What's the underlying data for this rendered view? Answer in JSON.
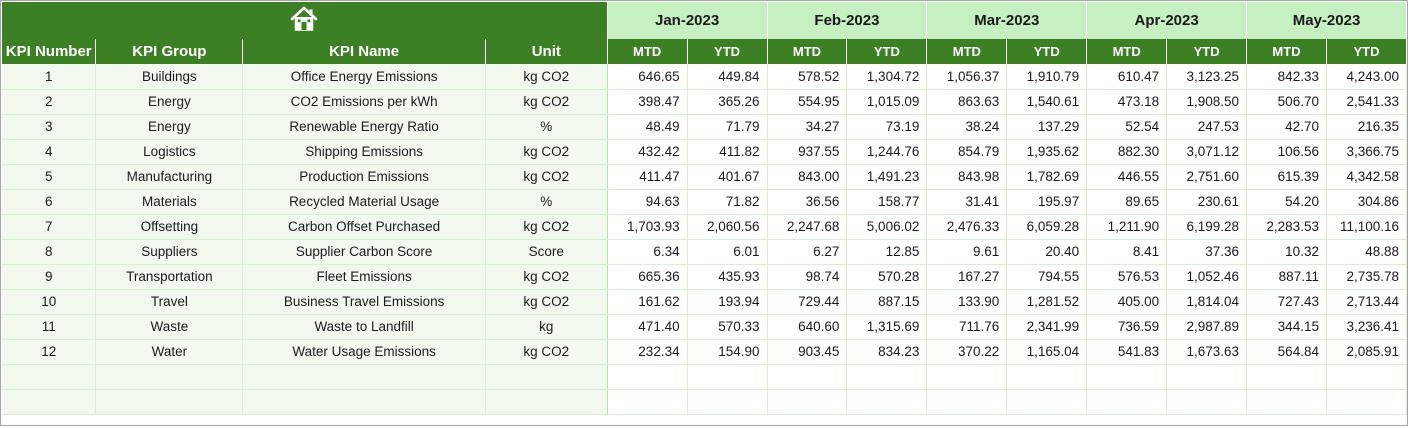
{
  "header": {
    "months": [
      "Jan-2023",
      "Feb-2023",
      "Mar-2023",
      "Apr-2023",
      "May-2023"
    ],
    "columns": {
      "kpi_number": "KPI Number",
      "kpi_group": "KPI Group",
      "kpi_name": "KPI Name",
      "unit": "Unit",
      "mtd": "MTD",
      "ytd": "YTD"
    },
    "home_icon": "home-icon"
  },
  "rows": [
    {
      "num": "1",
      "group": "Buildings",
      "name": "Office Energy Emissions",
      "unit": "kg CO2",
      "values": [
        "646.65",
        "449.84",
        "578.52",
        "1,304.72",
        "1,056.37",
        "1,910.79",
        "610.47",
        "3,123.25",
        "842.33",
        "4,243.00"
      ]
    },
    {
      "num": "2",
      "group": "Energy",
      "name": "CO2 Emissions per kWh",
      "unit": "kg CO2",
      "values": [
        "398.47",
        "365.26",
        "554.95",
        "1,015.09",
        "863.63",
        "1,540.61",
        "473.18",
        "1,908.50",
        "506.70",
        "2,541.33"
      ]
    },
    {
      "num": "3",
      "group": "Energy",
      "name": "Renewable Energy Ratio",
      "unit": "%",
      "values": [
        "48.49",
        "71.79",
        "34.27",
        "73.19",
        "38.24",
        "137.29",
        "52.54",
        "247.53",
        "42.70",
        "216.35"
      ]
    },
    {
      "num": "4",
      "group": "Logistics",
      "name": "Shipping Emissions",
      "unit": "kg CO2",
      "values": [
        "432.42",
        "411.82",
        "937.55",
        "1,244.76",
        "854.79",
        "1,935.62",
        "882.30",
        "3,071.12",
        "106.56",
        "3,366.75"
      ]
    },
    {
      "num": "5",
      "group": "Manufacturing",
      "name": "Production Emissions",
      "unit": "kg CO2",
      "values": [
        "411.47",
        "401.67",
        "843.00",
        "1,491.23",
        "843.98",
        "1,782.69",
        "446.55",
        "2,751.60",
        "615.39",
        "4,342.58"
      ]
    },
    {
      "num": "6",
      "group": "Materials",
      "name": "Recycled Material Usage",
      "unit": "%",
      "values": [
        "94.63",
        "71.82",
        "36.56",
        "158.77",
        "31.41",
        "195.97",
        "89.65",
        "230.61",
        "54.20",
        "304.86"
      ]
    },
    {
      "num": "7",
      "group": "Offsetting",
      "name": "Carbon Offset Purchased",
      "unit": "kg CO2",
      "values": [
        "1,703.93",
        "2,060.56",
        "2,247.68",
        "5,006.02",
        "2,476.33",
        "6,059.28",
        "1,211.90",
        "6,199.28",
        "2,283.53",
        "11,100.16"
      ]
    },
    {
      "num": "8",
      "group": "Suppliers",
      "name": "Supplier Carbon Score",
      "unit": "Score",
      "values": [
        "6.34",
        "6.01",
        "6.27",
        "12.85",
        "9.61",
        "20.40",
        "8.41",
        "37.36",
        "10.32",
        "48.88"
      ]
    },
    {
      "num": "9",
      "group": "Transportation",
      "name": "Fleet Emissions",
      "unit": "kg CO2",
      "values": [
        "665.36",
        "435.93",
        "98.74",
        "570.28",
        "167.27",
        "794.55",
        "576.53",
        "1,052.46",
        "887.11",
        "2,735.78"
      ]
    },
    {
      "num": "10",
      "group": "Travel",
      "name": "Business Travel Emissions",
      "unit": "kg CO2",
      "values": [
        "161.62",
        "193.94",
        "729.44",
        "887.15",
        "133.90",
        "1,281.52",
        "405.00",
        "1,814.04",
        "727.43",
        "2,713.44"
      ]
    },
    {
      "num": "11",
      "group": "Waste",
      "name": "Waste to Landfill",
      "unit": "kg",
      "values": [
        "471.40",
        "570.33",
        "640.60",
        "1,315.69",
        "711.76",
        "2,341.99",
        "736.59",
        "2,987.89",
        "344.15",
        "3,236.41"
      ]
    },
    {
      "num": "12",
      "group": "Water",
      "name": "Water Usage Emissions",
      "unit": "kg CO2",
      "values": [
        "232.34",
        "154.90",
        "903.45",
        "834.23",
        "370.22",
        "1,165.04",
        "541.83",
        "1,673.63",
        "564.84",
        "2,085.91"
      ]
    }
  ],
  "empty_rows": 2,
  "colors": {
    "header_green": "#3d7f24",
    "month_green": "#c6efc2",
    "info_bg": "#f1f9ef",
    "grid_line": "#d9efd3"
  }
}
